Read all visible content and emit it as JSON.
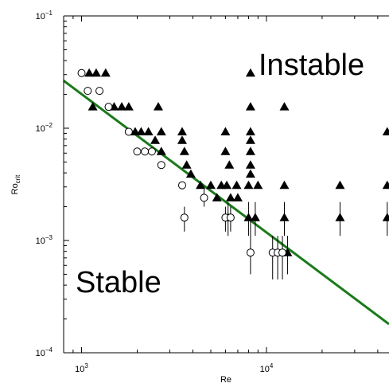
{
  "chart_data": {
    "type": "scatter",
    "title": "",
    "xlabel": "Re",
    "ylabel_main": "Ro",
    "ylabel_sub": "crit",
    "x_scale": "log",
    "y_scale": "log",
    "xlim": [
      800,
      46000
    ],
    "ylim": [
      0.0001,
      0.1
    ],
    "x_ticks": [
      {
        "value": 1000,
        "base": "10",
        "exp": "3"
      },
      {
        "value": 10000,
        "base": "10",
        "exp": "4"
      }
    ],
    "y_ticks": [
      {
        "value": 0.1,
        "base": "10",
        "exp": "−1"
      },
      {
        "value": 0.01,
        "base": "10",
        "exp": "−2"
      },
      {
        "value": 0.001,
        "base": "10",
        "exp": "−3"
      },
      {
        "value": 0.0001,
        "base": "10",
        "exp": "−4"
      }
    ],
    "grid": false,
    "annotations": [
      {
        "text": "Instable",
        "x": 30000,
        "y": 0.031
      },
      {
        "text": "Stable",
        "x": 1600,
        "y": 0.00057
      }
    ],
    "colors": {
      "fit_line": "#1a7a1a",
      "markers": "#000000"
    },
    "series": [
      {
        "marker": "filled-triangle",
        "points": [
          [
            1100,
            0.031
          ],
          [
            1200,
            0.031
          ],
          [
            1350,
            0.031
          ],
          [
            8200,
            0.031
          ],
          [
            1150,
            0.0155
          ],
          [
            1500,
            0.0155
          ],
          [
            1650,
            0.0155
          ],
          [
            1800,
            0.0155
          ],
          [
            2600,
            0.0155
          ],
          [
            8200,
            0.0155
          ],
          [
            12500,
            0.0155
          ],
          [
            1950,
            0.0093
          ],
          [
            2100,
            0.0093
          ],
          [
            2300,
            0.0093
          ],
          [
            2700,
            0.0093
          ],
          [
            3500,
            0.0093
          ],
          [
            6000,
            0.0093
          ],
          [
            8200,
            0.0093
          ],
          [
            45000,
            0.0093
          ],
          [
            2500,
            0.0078
          ],
          [
            3500,
            0.0078
          ],
          [
            8200,
            0.0078
          ],
          [
            2700,
            0.0062
          ],
          [
            3600,
            0.0062
          ],
          [
            6000,
            0.0062
          ],
          [
            8200,
            0.0062
          ],
          [
            3700,
            0.0047
          ],
          [
            6300,
            0.0047
          ],
          [
            8200,
            0.0047
          ],
          [
            3900,
            0.0039
          ],
          [
            8200,
            0.0039
          ],
          [
            4400,
            0.0031
          ],
          [
            5000,
            0.0031
          ],
          [
            5700,
            0.0031
          ],
          [
            6100,
            0.0031
          ],
          [
            6900,
            0.0031
          ],
          [
            8000,
            0.0031
          ],
          [
            9000,
            0.0031
          ],
          [
            12500,
            0.0031
          ],
          [
            25000,
            0.0031
          ],
          [
            45000,
            0.0031
          ],
          [
            5400,
            0.0024
          ],
          [
            6400,
            0.0024
          ],
          [
            7000,
            0.0024
          ]
        ]
      },
      {
        "marker": "filled-triangle-errorbar",
        "points": [
          [
            6200,
            0.0016,
            0.0011,
            0.0022
          ],
          [
            8000,
            0.0016,
            0.0011,
            0.0022
          ],
          [
            8700,
            0.0016,
            0.0011,
            0.0022
          ],
          [
            12500,
            0.0016,
            0.0011,
            0.0022
          ],
          [
            25000,
            0.0016,
            0.0011,
            0.0022
          ],
          [
            45000,
            0.0016,
            0.0011,
            0.0022
          ],
          [
            13000,
            0.00078,
            0.0005,
            0.0011
          ]
        ]
      },
      {
        "marker": "open-circle",
        "points": [
          [
            1000,
            0.031
          ],
          [
            1080,
            0.0215
          ],
          [
            1250,
            0.0215
          ],
          [
            1400,
            0.0155
          ],
          [
            1800,
            0.0093
          ],
          [
            2000,
            0.0062
          ],
          [
            2200,
            0.0062
          ],
          [
            2400,
            0.0062
          ],
          [
            2700,
            0.0047
          ],
          [
            3500,
            0.0031
          ]
        ]
      },
      {
        "marker": "open-circle-errorbar",
        "points": [
          [
            3600,
            0.0016,
            0.0012,
            0.002
          ],
          [
            4600,
            0.0024,
            0.002,
            0.0029
          ],
          [
            6000,
            0.0016,
            0.0012,
            0.002
          ],
          [
            6400,
            0.0016,
            0.0012,
            0.002
          ],
          [
            8200,
            0.00078,
            0.0005,
            0.0016
          ],
          [
            10800,
            0.00078,
            0.00045,
            0.0011
          ],
          [
            11500,
            0.00078,
            0.00045,
            0.0011
          ],
          [
            12200,
            0.00078,
            0.00045,
            0.0011
          ]
        ]
      },
      {
        "marker": "fit-line",
        "points": [
          [
            800,
            0.0265
          ],
          [
            46000,
            0.00018
          ]
        ]
      }
    ]
  }
}
